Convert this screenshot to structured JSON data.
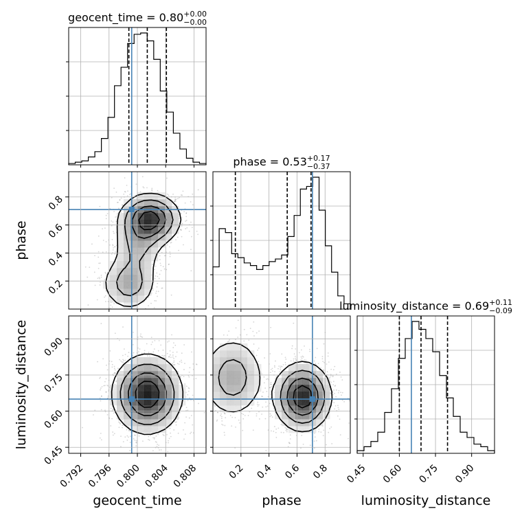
{
  "chart_data": {
    "type": "corner",
    "parameters": [
      "geocent_time",
      "phase",
      "luminosity_distance"
    ],
    "titles": {
      "geocent_time": {
        "prefix": "geocent_time = ",
        "value": "0.80",
        "plus": "+0.00",
        "minus": "−0.00"
      },
      "phase": {
        "prefix": "phase = ",
        "value": "0.53",
        "plus": "+0.17",
        "minus": "−0.37"
      },
      "luminosity_distance": {
        "prefix": "luminosity_distance = ",
        "value": "0.69",
        "plus": "+0.11",
        "minus": "−0.09"
      }
    },
    "ranges": {
      "geocent_time": [
        0.7903,
        0.8097
      ],
      "phase": [
        0.0,
        0.98
      ],
      "luminosity_distance": [
        0.425,
        0.995
      ]
    },
    "ticks": {
      "geocent_time": [
        "0.792",
        "0.796",
        "0.800",
        "0.804",
        "0.808"
      ],
      "phase": [
        "0.2",
        "0.4",
        "0.6",
        "0.8"
      ],
      "luminosity_distance": [
        "0.45",
        "0.60",
        "0.75",
        "0.90"
      ]
    },
    "injection": {
      "geocent_time": 0.7992,
      "phase": 0.71,
      "luminosity_distance": 0.65
    },
    "quantiles": {
      "geocent_time": [
        0.7988,
        0.8014,
        0.8041
      ],
      "phase": [
        0.16,
        0.53,
        0.7
      ],
      "luminosity_distance": [
        0.6,
        0.69,
        0.8
      ]
    },
    "histograms": {
      "geocent_time": [
        0.01,
        0.02,
        0.03,
        0.06,
        0.1,
        0.2,
        0.36,
        0.6,
        0.74,
        0.92,
        0.99,
        1.0,
        0.94,
        0.8,
        0.56,
        0.4,
        0.24,
        0.12,
        0.05,
        0.02,
        0.01
      ],
      "phase": [
        0.32,
        0.61,
        0.58,
        0.42,
        0.39,
        0.35,
        0.33,
        0.3,
        0.33,
        0.36,
        0.38,
        0.41,
        0.55,
        0.71,
        0.91,
        0.93,
        1.0,
        0.75,
        0.48,
        0.28,
        0.1,
        0.04
      ],
      "luminosity_distance": [
        0.02,
        0.05,
        0.09,
        0.16,
        0.31,
        0.49,
        0.72,
        0.87,
        1.0,
        0.94,
        0.87,
        0.77,
        0.59,
        0.42,
        0.28,
        0.16,
        0.12,
        0.07,
        0.05,
        0.02
      ]
    },
    "density_2d": {
      "phase_vs_geocent_time": [
        {
          "x": 0.8018,
          "y": 0.64,
          "sx": 0.0021,
          "sy": 0.09,
          "w": 1.0
        },
        {
          "x": 0.8,
          "y": 0.45,
          "sx": 0.0018,
          "sy": 0.12,
          "w": 0.35
        },
        {
          "x": 0.7988,
          "y": 0.18,
          "sx": 0.002,
          "sy": 0.1,
          "w": 0.45
        }
      ],
      "luminosity_distance_vs_geocent_time": [
        {
          "x": 0.8014,
          "y": 0.67,
          "sx": 0.0024,
          "sy": 0.08,
          "w": 1.0
        }
      ],
      "luminosity_distance_vs_phase": [
        {
          "x": 0.64,
          "y": 0.66,
          "sx": 0.1,
          "sy": 0.07,
          "w": 1.0
        },
        {
          "x": 0.14,
          "y": 0.74,
          "sx": 0.12,
          "sy": 0.09,
          "w": 0.42
        }
      ]
    },
    "colors": {
      "injection": "#4682b4",
      "hist": "#000000",
      "scatter": "#888888",
      "grid": "#b0b0b0"
    },
    "grid": true
  }
}
